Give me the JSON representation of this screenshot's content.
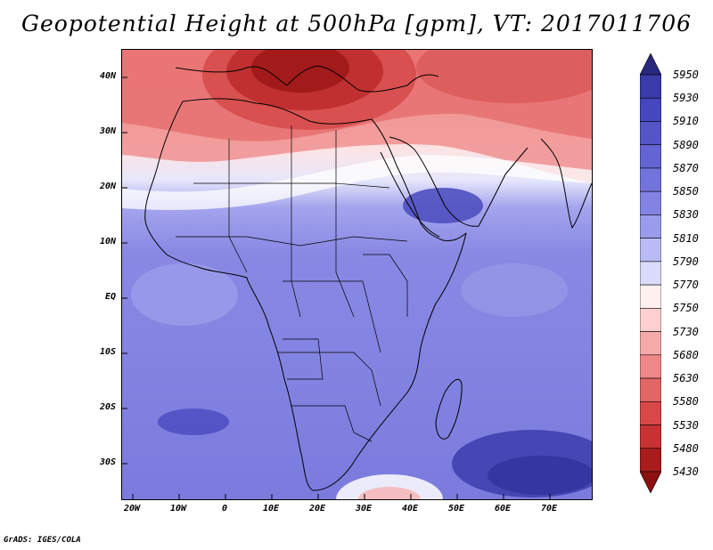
{
  "title": "Geopotential Height at 500hPa [gpm], VT: 2017011706",
  "footer": "GrADS: IGES/COLA",
  "map": {
    "lat_labels": [
      "40N",
      "30N",
      "20N",
      "10N",
      "EQ",
      "10S",
      "20S",
      "30S"
    ],
    "lon_labels": [
      "20W",
      "10W",
      "0",
      "10E",
      "20E",
      "30E",
      "40E",
      "50E",
      "60E",
      "70E"
    ],
    "extent": {
      "lon_min": -22,
      "lon_max": 80,
      "lat_min": -37,
      "lat_max": 45
    }
  },
  "colorbar": {
    "levels": [
      "5950",
      "5930",
      "5910",
      "5890",
      "5870",
      "5850",
      "5830",
      "5810",
      "5790",
      "5770",
      "5750",
      "5730",
      "5680",
      "5630",
      "5580",
      "5530",
      "5480",
      "5430"
    ],
    "colors": [
      "#28287e",
      "#3a3aa8",
      "#4646be",
      "#5555c8",
      "#6464d2",
      "#7373dc",
      "#8383e4",
      "#9b9bec",
      "#babaf4",
      "#dadafa",
      "#fff0f0",
      "#fcd0d0",
      "#f5aaaa",
      "#ee8888",
      "#e26666",
      "#d84848",
      "#c83232",
      "#a81c1c",
      "#8c1010"
    ]
  }
}
